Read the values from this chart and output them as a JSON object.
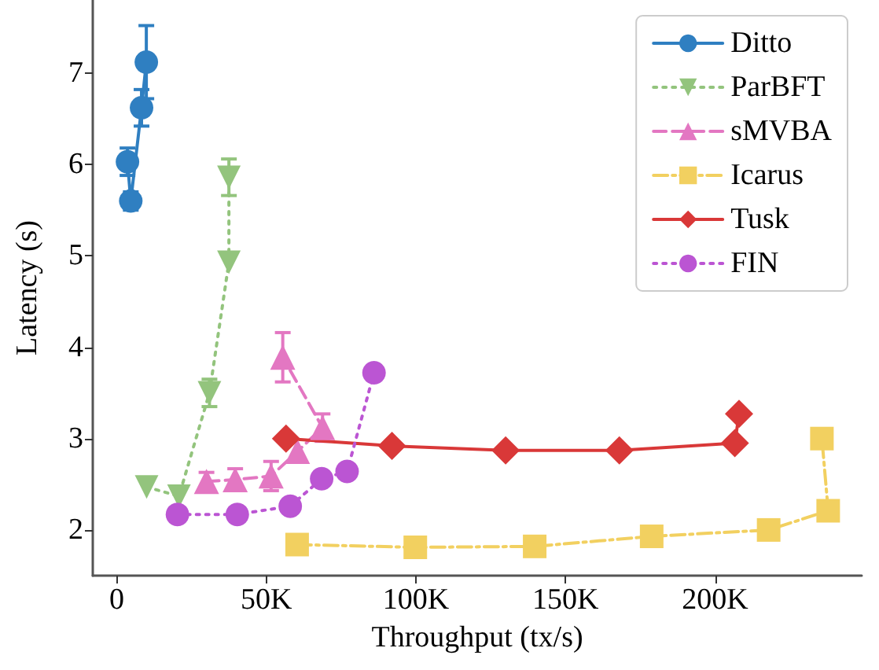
{
  "chart_data": {
    "type": "line",
    "xlabel": "Throughput (tx/s)",
    "ylabel": "Latency (s)",
    "xlim": [
      -8000,
      249000
    ],
    "xticks": [
      {
        "value": 0,
        "label": "0"
      },
      {
        "value": 50000,
        "label": "50K"
      },
      {
        "value": 100000,
        "label": "100K"
      },
      {
        "value": 150000,
        "label": "150K"
      },
      {
        "value": 200000,
        "label": "200K"
      }
    ],
    "ylim": [
      1.5,
      7.8
    ],
    "yticks": [
      2,
      3,
      4,
      5,
      6,
      7
    ],
    "grid": false,
    "legend": "top right",
    "series": [
      {
        "name": "Ditto",
        "color": "#2f7fc1",
        "marker": "circle",
        "line_style": "solid",
        "x": [
          3600,
          4700,
          8300,
          9900
        ],
        "values": [
          6.03,
          5.6,
          6.62,
          7.12
        ],
        "errors": [
          0.15,
          0.1,
          0.2,
          0.4
        ]
      },
      {
        "name": "ParBFT",
        "color": "#93c47d",
        "marker": "triangle-down",
        "line_style": "dotted",
        "x": [
          10000,
          20800,
          31000,
          37500,
          37500
        ],
        "values": [
          2.47,
          2.37,
          3.5,
          4.93,
          5.86
        ],
        "errors": [
          null,
          null,
          0.15,
          null,
          0.2
        ]
      },
      {
        "name": "sMVBA",
        "color": "#e377c2",
        "marker": "triangle",
        "line_style": "dashed",
        "x": [
          30000,
          39600,
          51600,
          60400,
          68800,
          55500
        ],
        "values": [
          2.53,
          2.55,
          2.59,
          2.86,
          3.12,
          3.89
        ],
        "errors": [
          0.1,
          0.12,
          0.16,
          null,
          0.15,
          0.27
        ]
      },
      {
        "name": "Icarus",
        "color": "#f2d060",
        "marker": "square",
        "line_style": "dashdot",
        "x": [
          60300,
          99800,
          139700,
          178800,
          217900,
          237800,
          235700
        ],
        "values": [
          1.84,
          1.81,
          1.82,
          1.93,
          2.0,
          2.21,
          3.0
        ],
        "errors": [
          null,
          null,
          null,
          0.07,
          null,
          null,
          null
        ]
      },
      {
        "name": "Tusk",
        "color": "#d93838",
        "marker": "diamond",
        "line_style": "solid",
        "x": [
          56600,
          92000,
          130000,
          168000,
          206600,
          208000
        ],
        "values": [
          3.0,
          2.92,
          2.87,
          2.87,
          2.95,
          3.27
        ]
      },
      {
        "name": "FIN",
        "color": "#bb55d3",
        "marker": "circle",
        "line_style": "dotted",
        "x": [
          20300,
          40300,
          58000,
          68500,
          77000,
          86000
        ],
        "values": [
          2.17,
          2.17,
          2.26,
          2.56,
          2.64,
          3.72
        ]
      }
    ]
  }
}
